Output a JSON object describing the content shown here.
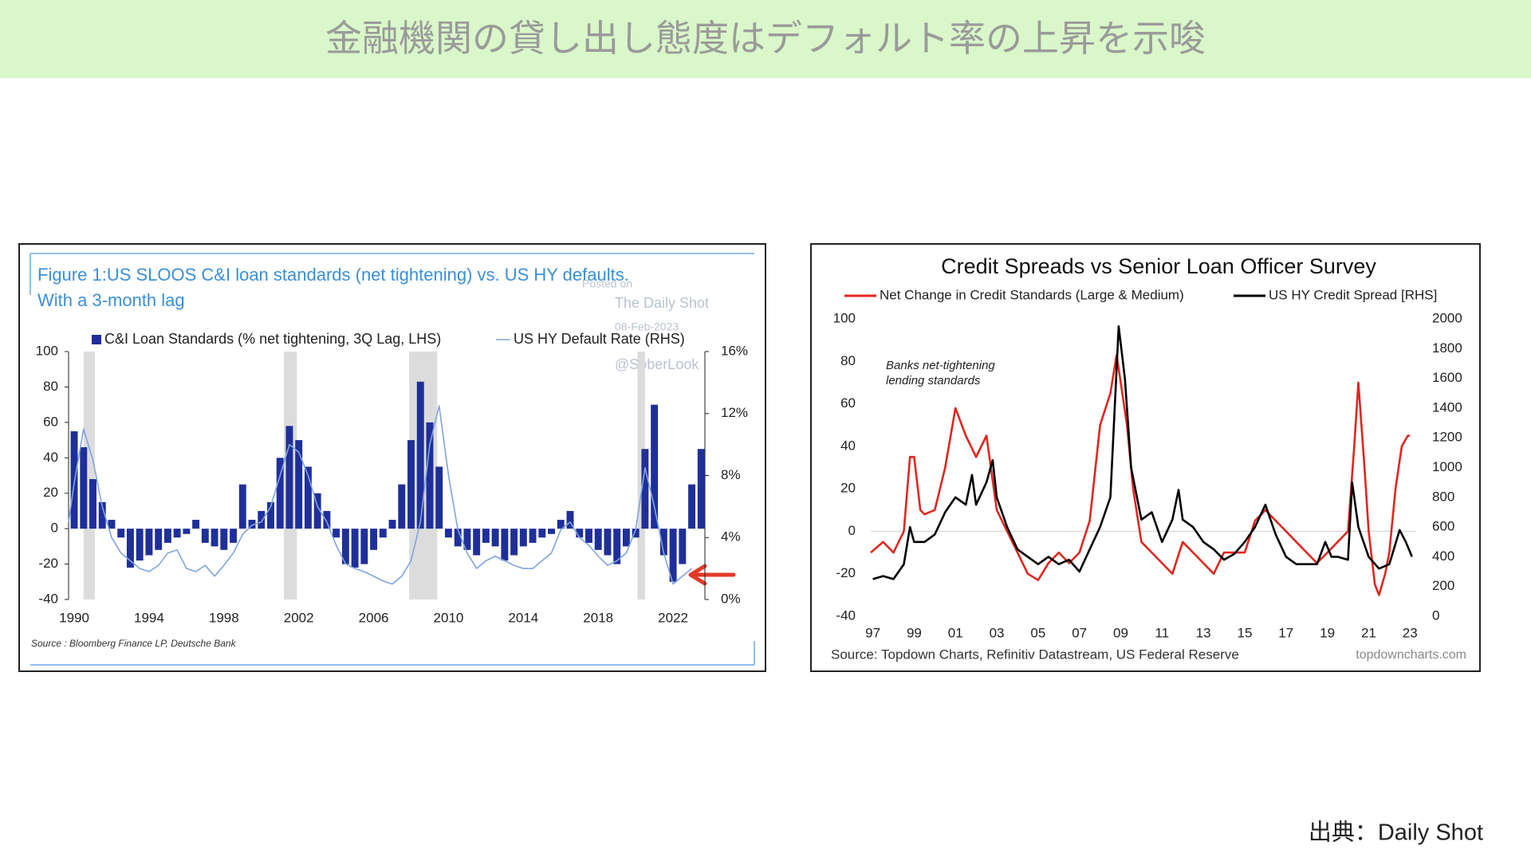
{
  "title": "金融機関の貸し出し態度はデフォルト率の上昇を示唆",
  "source_credit": "出典：Daily Shot",
  "chart_data": [
    {
      "type": "bar",
      "title": "Figure 1:US SLOOS C&I loan standards (net tightening) vs. US HY defaults.",
      "subtitle": "With a 3-month lag",
      "watermark": [
        "Posted on",
        "The Daily Shot",
        "08-Feb-2023",
        "@SoberLook"
      ],
      "source": "Source : Bloomberg Finance LP, Deutsche Bank",
      "xlim": [
        1989.7,
        2023.7
      ],
      "xticks": [
        1990,
        1994,
        1998,
        2002,
        2006,
        2010,
        2014,
        2018,
        2022
      ],
      "ylim": [
        -40,
        100
      ],
      "yticks": [
        -40,
        -20,
        0,
        20,
        40,
        60,
        80,
        100
      ],
      "y2lim": [
        0,
        16
      ],
      "y2ticks": [
        {
          "value": 0,
          "label": "0%"
        },
        {
          "value": 4,
          "label": "4%"
        },
        {
          "value": 8,
          "label": "8%"
        },
        {
          "value": 12,
          "label": "12%"
        },
        {
          "value": 16,
          "label": "16%"
        }
      ],
      "shaded_periods": [
        [
          1990.5,
          1991.1
        ],
        [
          2001.2,
          2001.9
        ],
        [
          2007.9,
          2009.4
        ],
        [
          2020.1,
          2020.5
        ]
      ],
      "shade_color": "#dcdcdc",
      "grid": false,
      "series": [
        {
          "name": "C&I Loan Standards (% net tightening, 3Q Lag, LHS)",
          "type": "bar",
          "color": "#1f2f9a",
          "x": [
            1990.0,
            1990.5,
            1991.0,
            1991.5,
            1992.0,
            1992.5,
            1993.0,
            1993.5,
            1994.0,
            1994.5,
            1995.0,
            1995.5,
            1996.0,
            1996.5,
            1997.0,
            1997.5,
            1998.0,
            1998.5,
            1999.0,
            1999.5,
            2000.0,
            2000.5,
            2001.0,
            2001.5,
            2002.0,
            2002.5,
            2003.0,
            2003.5,
            2004.0,
            2004.5,
            2005.0,
            2005.5,
            2006.0,
            2006.5,
            2007.0,
            2007.5,
            2008.0,
            2008.5,
            2009.0,
            2009.5,
            2010.0,
            2010.5,
            2011.0,
            2011.5,
            2012.0,
            2012.5,
            2013.0,
            2013.5,
            2014.0,
            2014.5,
            2015.0,
            2015.5,
            2016.0,
            2016.5,
            2017.0,
            2017.5,
            2018.0,
            2018.5,
            2019.0,
            2019.5,
            2020.0,
            2020.5,
            2021.0,
            2021.5,
            2022.0,
            2022.5,
            2023.0,
            2023.5
          ],
          "values": [
            55,
            46,
            28,
            15,
            5,
            -5,
            -22,
            -18,
            -15,
            -12,
            -8,
            -5,
            -3,
            5,
            -8,
            -10,
            -12,
            -8,
            25,
            5,
            10,
            15,
            40,
            58,
            50,
            35,
            20,
            10,
            -5,
            -20,
            -22,
            -20,
            -12,
            -5,
            5,
            25,
            50,
            83,
            60,
            35,
            -5,
            -10,
            -12,
            -15,
            -8,
            -10,
            -18,
            -15,
            -10,
            -8,
            -5,
            -3,
            5,
            10,
            -5,
            -8,
            -12,
            -15,
            -20,
            -10,
            -5,
            45,
            70,
            -15,
            -30,
            -20,
            25,
            45
          ]
        },
        {
          "name": "US HY Default Rate (RHS)",
          "type": "line",
          "axis": "y2",
          "color": "#7fa4e0",
          "x": [
            1989.7,
            1990.0,
            1990.5,
            1991.0,
            1991.5,
            1992.0,
            1992.5,
            1993.0,
            1993.5,
            1994.0,
            1994.5,
            1995.0,
            1995.5,
            1996.0,
            1996.5,
            1997.0,
            1997.5,
            1998.0,
            1998.5,
            1999.0,
            1999.5,
            2000.0,
            2000.5,
            2001.0,
            2001.5,
            2002.0,
            2002.5,
            2003.0,
            2003.5,
            2004.0,
            2004.5,
            2005.0,
            2005.5,
            2006.0,
            2006.5,
            2007.0,
            2007.5,
            2008.0,
            2008.5,
            2009.0,
            2009.5,
            2010.0,
            2010.5,
            2011.0,
            2011.5,
            2012.0,
            2012.5,
            2013.0,
            2013.5,
            2014.0,
            2014.5,
            2015.0,
            2015.5,
            2016.0,
            2016.5,
            2017.0,
            2017.5,
            2018.0,
            2018.5,
            2019.0,
            2019.5,
            2020.0,
            2020.5,
            2021.0,
            2021.5,
            2022.0,
            2022.5,
            2023.0
          ],
          "values": [
            5.0,
            7.5,
            11,
            9,
            6,
            4,
            3,
            2.5,
            2,
            1.8,
            2.2,
            3,
            3.2,
            2,
            1.8,
            2.2,
            1.5,
            2.2,
            3,
            4.2,
            4.8,
            5,
            6,
            8,
            10,
            9.5,
            8,
            6,
            5,
            3.5,
            2.3,
            2,
            1.8,
            1.5,
            1.2,
            1,
            1.5,
            2.5,
            5,
            10,
            12.5,
            8,
            4.5,
            3,
            2,
            2.5,
            2.8,
            2.5,
            2.2,
            2,
            2,
            2.5,
            3,
            4.5,
            5,
            4,
            3.5,
            2.8,
            2.2,
            2.5,
            3,
            4.5,
            8.5,
            6,
            3,
            1,
            1.5,
            2
          ]
        }
      ]
    },
    {
      "type": "line",
      "title": "Credit Spreads vs Senior Loan Officer Survey",
      "annotation": [
        "Banks net-tightening",
        "lending standards"
      ],
      "source": "Source: Topdown Charts, Refinitiv Datastream, US Federal Reserve",
      "credit": "topdowncharts.com",
      "xlim": [
        1996.9,
        2023.3
      ],
      "xticks": [
        {
          "value": 1997,
          "label": "97"
        },
        {
          "value": 1999,
          "label": "99"
        },
        {
          "value": 2001,
          "label": "01"
        },
        {
          "value": 2003,
          "label": "03"
        },
        {
          "value": 2005,
          "label": "05"
        },
        {
          "value": 2007,
          "label": "07"
        },
        {
          "value": 2009,
          "label": "09"
        },
        {
          "value": 2011,
          "label": "11"
        },
        {
          "value": 2013,
          "label": "13"
        },
        {
          "value": 2015,
          "label": "15"
        },
        {
          "value": 2017,
          "label": "17"
        },
        {
          "value": 2019,
          "label": "19"
        },
        {
          "value": 2021,
          "label": "21"
        },
        {
          "value": 2023,
          "label": "23"
        }
      ],
      "ylim": [
        -40,
        100
      ],
      "yticks": [
        -40,
        -20,
        0,
        20,
        40,
        60,
        80,
        100
      ],
      "y2lim": [
        0,
        2000
      ],
      "y2ticks": [
        0,
        200,
        400,
        600,
        800,
        1000,
        1200,
        1400,
        1600,
        1800,
        2000
      ],
      "zero_line": true,
      "series": [
        {
          "name": "Net Change in Credit Standards (Large & Medium)",
          "type": "line",
          "color": "#e0261f",
          "x": [
            1996.9,
            1997.5,
            1998.0,
            1998.5,
            1998.8,
            1999.0,
            1999.3,
            1999.5,
            2000.0,
            2000.5,
            2001.0,
            2001.5,
            2002.0,
            2002.5,
            2003.0,
            2003.5,
            2004.0,
            2004.5,
            2005.0,
            2005.5,
            2006.0,
            2006.5,
            2007.0,
            2007.5,
            2008.0,
            2008.5,
            2008.8,
            2009.0,
            2009.3,
            2009.6,
            2010.0,
            2010.5,
            2011.0,
            2011.5,
            2012.0,
            2012.5,
            2013.0,
            2013.5,
            2014.0,
            2014.5,
            2015.0,
            2015.5,
            2016.0,
            2016.5,
            2017.0,
            2017.5,
            2018.0,
            2018.5,
            2019.0,
            2019.5,
            2020.0,
            2020.3,
            2020.5,
            2020.8,
            2021.0,
            2021.3,
            2021.5,
            2021.8,
            2022.0,
            2022.3,
            2022.6,
            2022.9,
            2023.0
          ],
          "values": [
            -10,
            -5,
            -10,
            0,
            35,
            35,
            10,
            8,
            10,
            30,
            58,
            45,
            35,
            45,
            10,
            0,
            -10,
            -20,
            -23,
            -15,
            -10,
            -15,
            -10,
            5,
            50,
            65,
            83,
            70,
            50,
            20,
            -5,
            -10,
            -15,
            -20,
            -5,
            -10,
            -15,
            -20,
            -10,
            -10,
            -10,
            5,
            10,
            5,
            0,
            -5,
            -10,
            -15,
            -10,
            -5,
            0,
            40,
            70,
            30,
            0,
            -25,
            -30,
            -20,
            -10,
            20,
            40,
            45,
            45
          ]
        },
        {
          "name": "US HY Credit Spread [RHS]",
          "type": "line",
          "axis": "y2",
          "color": "#000000",
          "x": [
            1997.0,
            1997.5,
            1998.0,
            1998.5,
            1998.8,
            1999.0,
            1999.5,
            2000.0,
            2000.5,
            2001.0,
            2001.5,
            2001.8,
            2002.0,
            2002.5,
            2002.8,
            2003.0,
            2003.5,
            2004.0,
            2004.5,
            2005.0,
            2005.5,
            2006.0,
            2006.5,
            2007.0,
            2007.5,
            2008.0,
            2008.5,
            2008.9,
            2009.2,
            2009.5,
            2010.0,
            2010.5,
            2011.0,
            2011.5,
            2011.8,
            2012.0,
            2012.5,
            2013.0,
            2013.5,
            2014.0,
            2014.5,
            2015.0,
            2015.5,
            2016.0,
            2016.5,
            2017.0,
            2017.5,
            2018.0,
            2018.5,
            2018.9,
            2019.2,
            2019.5,
            2020.0,
            2020.2,
            2020.5,
            2021.0,
            2021.5,
            2022.0,
            2022.5,
            2022.8,
            2023.1
          ],
          "values": [
            250,
            270,
            250,
            350,
            600,
            500,
            500,
            550,
            700,
            800,
            750,
            950,
            750,
            900,
            1050,
            800,
            600,
            450,
            400,
            350,
            400,
            350,
            380,
            300,
            450,
            600,
            800,
            1950,
            1600,
            1000,
            650,
            700,
            500,
            650,
            850,
            650,
            600,
            500,
            450,
            380,
            420,
            500,
            600,
            750,
            550,
            400,
            350,
            350,
            350,
            500,
            400,
            400,
            380,
            900,
            600,
            400,
            320,
            350,
            580,
            500,
            400
          ]
        }
      ]
    }
  ]
}
